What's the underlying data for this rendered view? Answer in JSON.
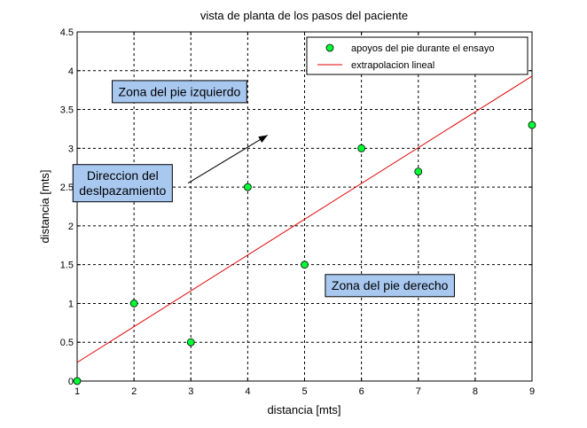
{
  "chart_data": {
    "type": "scatter",
    "title": "vista de planta de los pasos del paciente",
    "xlabel": "distancia [mts]",
    "ylabel": "distancia   [mts]",
    "xlim": [
      1,
      9
    ],
    "ylim": [
      0,
      4.5
    ],
    "xticks": [
      "1",
      "2",
      "3",
      "4",
      "5",
      "6",
      "7",
      "8",
      "9"
    ],
    "yticks": [
      "0",
      "0.5",
      "1",
      "1.5",
      "2",
      "2.5",
      "3",
      "3.5",
      "4",
      "4.5"
    ],
    "grid": true,
    "legend_position": "top-right",
    "series": [
      {
        "name": "apoyos del pie durante el ensayo",
        "kind": "points",
        "color": "#00ff33",
        "x": [
          1,
          2,
          3,
          4,
          5,
          6,
          7,
          9
        ],
        "y": [
          0,
          1,
          0.5,
          2.5,
          1.5,
          3,
          2.7,
          3.3
        ]
      },
      {
        "name": "extrapolacion lineal",
        "kind": "line",
        "color": "#e00000",
        "x": [
          1,
          9
        ],
        "y": [
          0.24,
          3.93
        ]
      }
    ],
    "annotations": [
      {
        "id": "left",
        "lines": [
          "Zona del pie izquierdo"
        ],
        "x": 2.8,
        "y": 3.73
      },
      {
        "id": "right",
        "lines": [
          "Zona del pie derecho"
        ],
        "x": 6.5,
        "y": 1.23
      },
      {
        "id": "dir",
        "lines": [
          "Direccion del",
          "deslpazamiento"
        ],
        "x": 1.8,
        "y": 2.55
      }
    ],
    "arrow": {
      "from": [
        2.95,
        2.55
      ],
      "to": [
        4.35,
        3.17
      ]
    },
    "annotation_color": "#a8c8f0"
  }
}
